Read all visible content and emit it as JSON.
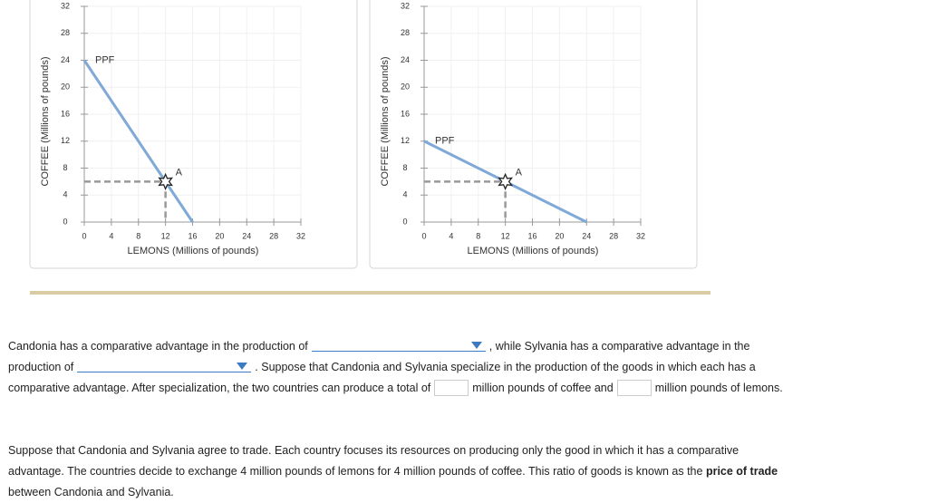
{
  "chart_data": [
    {
      "type": "line",
      "xlabel": "LEMONS (Millions of pounds)",
      "ylabel": "COFFEE (Millions of pounds)",
      "xlim": [
        0,
        32
      ],
      "ylim": [
        0,
        32
      ],
      "xticks": [
        0,
        4,
        8,
        12,
        16,
        20,
        24,
        28,
        32
      ],
      "yticks": [
        0,
        4,
        8,
        12,
        16,
        20,
        24,
        28,
        32
      ],
      "grid": true,
      "series": [
        {
          "name": "PPF",
          "color": "#7fa9d6",
          "x": [
            0,
            16
          ],
          "values": [
            24,
            0
          ]
        }
      ],
      "point": {
        "name": "A",
        "x": 12,
        "y": 6
      }
    },
    {
      "type": "line",
      "xlabel": "LEMONS (Millions of pounds)",
      "ylabel": "COFFEE (Millions of pounds)",
      "xlim": [
        0,
        32
      ],
      "ylim": [
        0,
        32
      ],
      "xticks": [
        0,
        4,
        8,
        12,
        16,
        20,
        24,
        28,
        32
      ],
      "yticks": [
        0,
        4,
        8,
        12,
        16,
        20,
        24,
        28,
        32
      ],
      "grid": true,
      "series": [
        {
          "name": "PPF",
          "color": "#7fa9d6",
          "x": [
            0,
            24
          ],
          "values": [
            12,
            0
          ]
        }
      ],
      "point": {
        "name": "A",
        "x": 12,
        "y": 6
      }
    }
  ],
  "question": {
    "p1": [
      "Candonia has a comparative advantage in the production of",
      ", while Sylvania has a comparative advantage in the production of",
      ". Suppose that Candonia and Sylvania specialize in the production of the goods in which each has a comparative advantage. After specialization, the two countries can produce a total of",
      "million pounds of coffee and",
      "million pounds of lemons."
    ],
    "p2": [
      "Suppose that Candonia and Sylvania agree to trade. Each country focuses its resources on producing only the good in which it has a comparative advantage. The countries decide to exchange 4 million pounds of lemons for 4 million pounds of coffee. This ratio of goods is known as the",
      "price of trade",
      "between Candonia and Sylvania."
    ]
  }
}
